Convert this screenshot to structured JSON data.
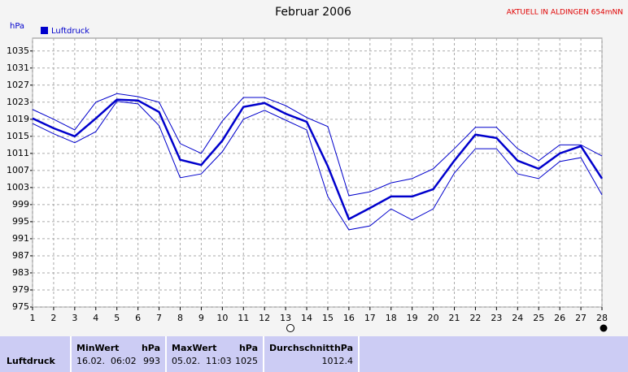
{
  "chart_data": {
    "type": "line",
    "title": "Februar 2006",
    "station": "AKTUELL IN ALDINGEN 654mNN",
    "y_label": "hPa",
    "x": [
      1,
      2,
      3,
      4,
      5,
      6,
      7,
      8,
      9,
      10,
      11,
      12,
      13,
      14,
      15,
      16,
      17,
      18,
      19,
      20,
      21,
      22,
      23,
      24,
      25,
      26,
      27,
      28
    ],
    "series": [
      {
        "name": "Luftdruck",
        "color": "#0000cc",
        "values": [
          1019.2,
          1016.9,
          1015,
          1019.2,
          1023.6,
          1023.4,
          1020.7,
          1009.5,
          1008.3,
          1014,
          1021.9,
          1022.8,
          1020.3,
          1018.4,
          1008,
          995.6,
          998.2,
          1000.9,
          1000.9,
          1002.6,
          1009.3,
          1015.4,
          1014.6,
          1009.3,
          1007.4,
          1011,
          1012.7,
          1005.1
        ]
      },
      {
        "color": "#0000cc",
        "values": [
          1021.3,
          1019,
          1016.5,
          1023,
          1025,
          1024.3,
          1023,
          1013.3,
          1011,
          1018.6,
          1024.1,
          1024.1,
          1022.2,
          1019.4,
          1017.3,
          1001.1,
          1002,
          1004.1,
          1005.1,
          1007.4,
          1012.1,
          1017.1,
          1017.1,
          1012.1,
          1009.3,
          1013,
          1013,
          1010.4
        ]
      },
      {
        "color": "#0000cc",
        "values": [
          1018,
          1015.6,
          1013.5,
          1016.1,
          1023.2,
          1022.6,
          1017.5,
          1005.3,
          1006.2,
          1011.4,
          1019,
          1021.1,
          1018.8,
          1016.5,
          1000.9,
          993.1,
          994,
          998,
          995.4,
          998,
          1006.4,
          1012.1,
          1012.1,
          1006.2,
          1005.1,
          1009.1,
          1010,
          1001.3
        ]
      }
    ],
    "xlim": [
      1,
      28
    ],
    "xticks": [
      1,
      2,
      3,
      4,
      5,
      6,
      7,
      8,
      9,
      10,
      11,
      12,
      13,
      14,
      15,
      16,
      17,
      18,
      19,
      20,
      21,
      22,
      23,
      24,
      25,
      26,
      27,
      28
    ],
    "ylim": [
      975,
      1038
    ],
    "yticks": [
      975,
      979,
      983,
      987,
      991,
      995,
      999,
      1003,
      1007,
      1011,
      1015,
      1019,
      1023,
      1027,
      1031,
      1035
    ],
    "grid": true
  },
  "table": {
    "header": [
      "MinWert",
      "hPa",
      "MaxWert",
      "hPa",
      "Durchschnitt",
      "hPa"
    ],
    "rows": [
      [
        "Luftdruck",
        "16.02.  06:02",
        "993",
        "05.02.  11:03",
        "1025",
        "1012.4"
      ]
    ]
  }
}
